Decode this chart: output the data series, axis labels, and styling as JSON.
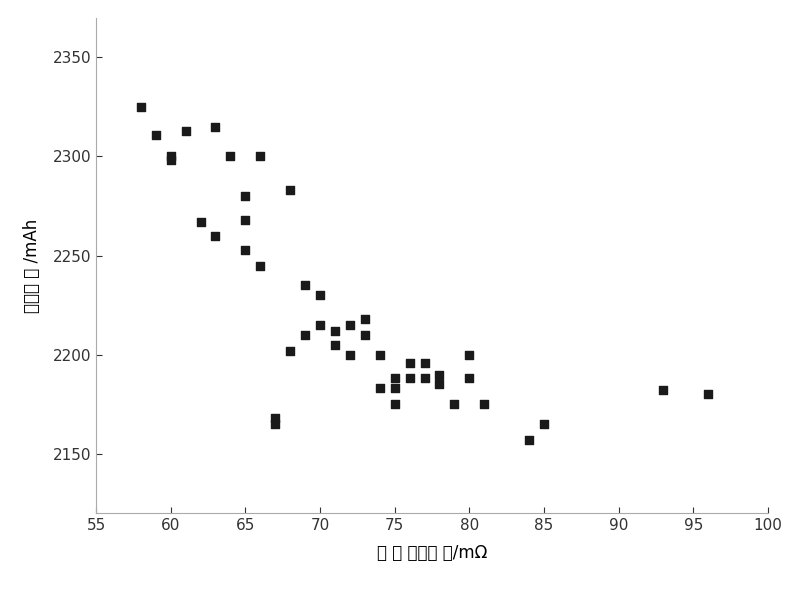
{
  "x_data": [
    58,
    59,
    60,
    60,
    61,
    62,
    63,
    63,
    64,
    65,
    65,
    65,
    66,
    66,
    67,
    67,
    68,
    68,
    69,
    69,
    70,
    70,
    71,
    71,
    72,
    72,
    73,
    73,
    74,
    74,
    75,
    75,
    75,
    76,
    76,
    77,
    77,
    78,
    78,
    79,
    80,
    80,
    81,
    84,
    85,
    93,
    96
  ],
  "y_data": [
    2325,
    2311,
    2300,
    2298,
    2313,
    2267,
    2260,
    2315,
    2300,
    2280,
    2268,
    2253,
    2245,
    2300,
    2165,
    2168,
    2202,
    2283,
    2210,
    2235,
    2230,
    2215,
    2212,
    2205,
    2215,
    2200,
    2218,
    2210,
    2200,
    2183,
    2188,
    2183,
    2175,
    2196,
    2188,
    2196,
    2188,
    2190,
    2185,
    2175,
    2200,
    2188,
    2175,
    2157,
    2165,
    2182,
    2180
  ],
  "xlabel": "直 流 放电内 阱/mΩ",
  "ylabel": "放电容 量 /mAh",
  "xlim": [
    55,
    100
  ],
  "ylim": [
    2120,
    2370
  ],
  "xticks": [
    55,
    60,
    65,
    70,
    75,
    80,
    85,
    90,
    95,
    100
  ],
  "yticks": [
    2150,
    2200,
    2250,
    2300,
    2350
  ],
  "marker_color": "#1a1a1a",
  "marker_size": 36,
  "background_color": "#ffffff",
  "spine_color": "#aaaaaa",
  "tick_color": "#333333"
}
